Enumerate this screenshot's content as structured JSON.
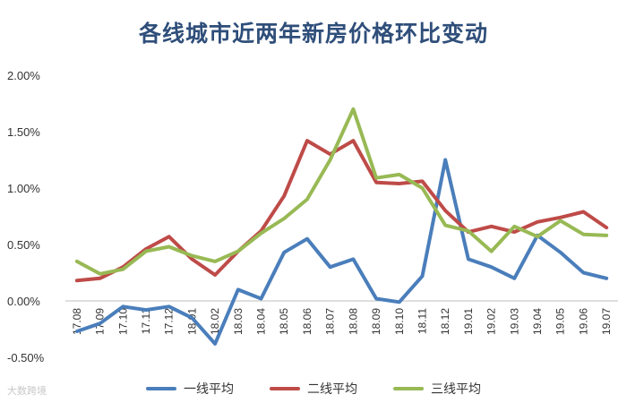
{
  "chart_data": {
    "type": "line",
    "title": "各线城市近两年新房价格环比变动",
    "categories": [
      "17.08",
      "17.09",
      "17.10",
      "17.11",
      "17.12",
      "18.01",
      "18.02",
      "18.03",
      "18.04",
      "18.05",
      "18.06",
      "18.07",
      "18.08",
      "18.09",
      "18.10",
      "18.11",
      "18.12",
      "19.01",
      "19.02",
      "19.03",
      "19.04",
      "19.05",
      "19.06",
      "19.07"
    ],
    "y_ticks": [
      "2.00%",
      "1.50%",
      "1.00%",
      "0.50%",
      "0.00%",
      "-0.50%"
    ],
    "ylim": [
      -0.5,
      2.0
    ],
    "grid": false,
    "legend_position": "bottom",
    "series": [
      {
        "name": "一线平均",
        "color": "#4a7ebb",
        "values": [
          -0.27,
          -0.2,
          -0.05,
          -0.08,
          -0.05,
          -0.15,
          -0.38,
          0.1,
          0.02,
          0.43,
          0.55,
          0.3,
          0.37,
          0.02,
          -0.01,
          0.22,
          1.25,
          0.37,
          0.3,
          0.2,
          0.58,
          0.43,
          0.25,
          0.2
        ]
      },
      {
        "name": "二线平均",
        "color": "#be4b48",
        "values": [
          0.18,
          0.2,
          0.3,
          0.46,
          0.57,
          0.37,
          0.23,
          0.44,
          0.62,
          0.93,
          1.42,
          1.3,
          1.42,
          1.05,
          1.04,
          1.06,
          0.8,
          0.61,
          0.66,
          0.61,
          0.7,
          0.74,
          0.79,
          0.65
        ]
      },
      {
        "name": "三线平均",
        "color": "#98b954",
        "values": [
          0.35,
          0.24,
          0.28,
          0.44,
          0.48,
          0.4,
          0.35,
          0.44,
          0.6,
          0.73,
          0.9,
          1.25,
          1.7,
          1.09,
          1.12,
          1.0,
          0.67,
          0.62,
          0.44,
          0.66,
          0.57,
          0.71,
          0.59,
          0.58
        ]
      }
    ]
  },
  "watermark": "大数跨境"
}
